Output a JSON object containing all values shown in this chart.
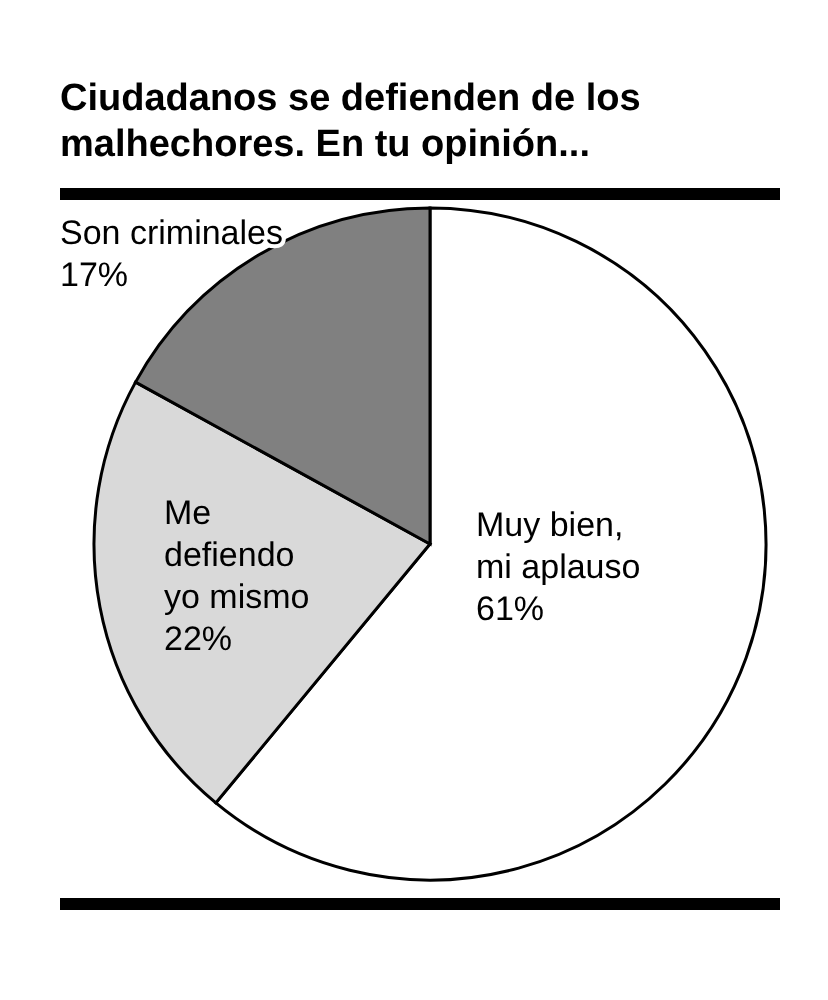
{
  "chart_data": {
    "type": "pie",
    "title": "Ciudadanos se defienden de los malhechores. En tu opinión...",
    "categories": [
      "Muy bien, mi aplauso",
      "Me defiendo yo mismo",
      "Son criminales"
    ],
    "values": [
      61,
      22,
      17
    ],
    "colors": [
      "#ffffff",
      "#d9d9d9",
      "#808080"
    ],
    "value_labels": [
      "61%",
      "22%",
      "17%"
    ],
    "legend": false
  }
}
